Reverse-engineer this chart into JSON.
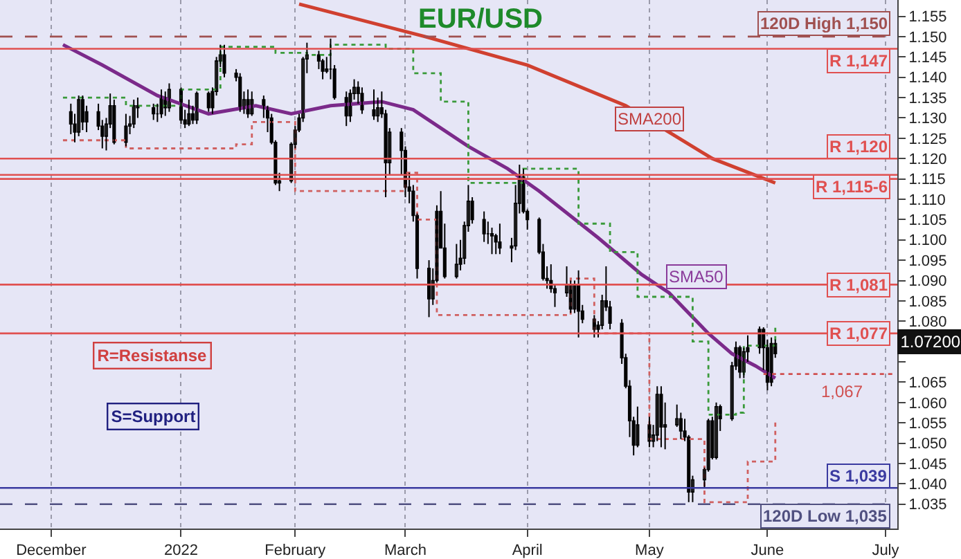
{
  "chart_data": {
    "type": "candlestick",
    "title": "EUR/USD",
    "x": [
      "2021-12-06",
      "2021-12-07",
      "2021-12-08",
      "2021-12-09",
      "2021-12-10",
      "2021-12-13",
      "2021-12-14",
      "2021-12-15",
      "2021-12-16",
      "2021-12-17",
      "2021-12-20",
      "2021-12-21",
      "2021-12-22",
      "2021-12-23",
      "2021-12-27",
      "2021-12-28",
      "2021-12-29",
      "2021-12-30",
      "2021-12-31",
      "2022-01-03",
      "2022-01-04",
      "2022-01-05",
      "2022-01-06",
      "2022-01-07",
      "2022-01-10",
      "2022-01-11",
      "2022-01-12",
      "2022-01-13",
      "2022-01-14",
      "2022-01-17",
      "2022-01-18",
      "2022-01-19",
      "2022-01-20",
      "2022-01-21",
      "2022-01-24",
      "2022-01-25",
      "2022-01-26",
      "2022-01-27",
      "2022-01-28",
      "2022-01-31",
      "2022-02-01",
      "2022-02-02",
      "2022-02-03",
      "2022-02-04",
      "2022-02-07",
      "2022-02-08",
      "2022-02-09",
      "2022-02-10",
      "2022-02-11",
      "2022-02-14",
      "2022-02-15",
      "2022-02-16",
      "2022-02-17",
      "2022-02-18",
      "2022-02-21",
      "2022-02-22",
      "2022-02-23",
      "2022-02-24",
      "2022-02-25",
      "2022-02-28",
      "2022-03-01",
      "2022-03-02",
      "2022-03-03",
      "2022-03-04",
      "2022-03-07",
      "2022-03-08",
      "2022-03-09",
      "2022-03-10",
      "2022-03-11",
      "2022-03-14",
      "2022-03-15",
      "2022-03-16",
      "2022-03-17",
      "2022-03-18",
      "2022-03-21",
      "2022-03-22",
      "2022-03-23",
      "2022-03-24",
      "2022-03-25",
      "2022-03-28",
      "2022-03-29",
      "2022-03-30",
      "2022-03-31",
      "2022-04-01",
      "2022-04-04",
      "2022-04-05",
      "2022-04-06",
      "2022-04-07",
      "2022-04-08",
      "2022-04-11",
      "2022-04-12",
      "2022-04-13",
      "2022-04-14",
      "2022-04-15",
      "2022-04-18",
      "2022-04-19",
      "2022-04-20",
      "2022-04-21",
      "2022-04-22",
      "2022-04-25",
      "2022-04-26",
      "2022-04-27",
      "2022-04-28",
      "2022-04-29",
      "2022-05-02",
      "2022-05-03",
      "2022-05-04",
      "2022-05-05",
      "2022-05-06",
      "2022-05-09",
      "2022-05-10",
      "2022-05-11",
      "2022-05-12",
      "2022-05-13",
      "2022-05-16",
      "2022-05-17",
      "2022-05-18",
      "2022-05-19",
      "2022-05-20",
      "2022-05-23",
      "2022-05-24",
      "2022-05-25",
      "2022-05-26",
      "2022-05-27",
      "2022-05-30",
      "2022-05-31",
      "2022-06-01",
      "2022-06-02",
      "2022-06-03"
    ],
    "ohlc": [
      [
        1.1315,
        1.1335,
        1.126,
        1.1285
      ],
      [
        1.1285,
        1.131,
        1.124,
        1.1265
      ],
      [
        1.1265,
        1.1355,
        1.1255,
        1.1345
      ],
      [
        1.1345,
        1.1355,
        1.127,
        1.129
      ],
      [
        1.129,
        1.133,
        1.1265,
        1.1315
      ],
      [
        1.1315,
        1.1335,
        1.127,
        1.128
      ],
      [
        1.128,
        1.1295,
        1.1225,
        1.1255
      ],
      [
        1.1255,
        1.13,
        1.122,
        1.1285
      ],
      [
        1.1285,
        1.136,
        1.1275,
        1.133
      ],
      [
        1.133,
        1.1345,
        1.1235,
        1.124
      ],
      [
        1.124,
        1.131,
        1.123,
        1.128
      ],
      [
        1.128,
        1.1305,
        1.126,
        1.1285
      ],
      [
        1.1285,
        1.1345,
        1.1275,
        1.133
      ],
      [
        1.133,
        1.135,
        1.13,
        1.1325
      ],
      [
        1.1325,
        1.1335,
        1.1295,
        1.131
      ],
      [
        1.131,
        1.1335,
        1.129,
        1.131
      ],
      [
        1.131,
        1.137,
        1.13,
        1.135
      ],
      [
        1.135,
        1.1365,
        1.1305,
        1.1325
      ],
      [
        1.1325,
        1.1385,
        1.1315,
        1.137
      ],
      [
        1.137,
        1.1375,
        1.1285,
        1.1295
      ],
      [
        1.1295,
        1.132,
        1.1275,
        1.1285
      ],
      [
        1.1285,
        1.1345,
        1.128,
        1.131
      ],
      [
        1.131,
        1.133,
        1.1285,
        1.1295
      ],
      [
        1.1295,
        1.1365,
        1.1285,
        1.136
      ],
      [
        1.136,
        1.1365,
        1.1315,
        1.1325
      ],
      [
        1.1325,
        1.1375,
        1.131,
        1.1365
      ],
      [
        1.1365,
        1.145,
        1.1355,
        1.144
      ],
      [
        1.144,
        1.148,
        1.1425,
        1.1455
      ],
      [
        1.1455,
        1.148,
        1.14,
        1.141
      ],
      [
        1.141,
        1.142,
        1.139,
        1.14
      ],
      [
        1.14,
        1.141,
        1.1315,
        1.1325
      ],
      [
        1.1325,
        1.1365,
        1.131,
        1.1345
      ],
      [
        1.1345,
        1.137,
        1.13,
        1.131
      ],
      [
        1.131,
        1.1365,
        1.1305,
        1.1345
      ],
      [
        1.1345,
        1.1355,
        1.13,
        1.1325
      ],
      [
        1.1325,
        1.133,
        1.1265,
        1.13
      ],
      [
        1.13,
        1.131,
        1.1235,
        1.124
      ],
      [
        1.124,
        1.1245,
        1.1135,
        1.114
      ],
      [
        1.114,
        1.1165,
        1.112,
        1.1145
      ],
      [
        1.1145,
        1.124,
        1.114,
        1.1235
      ],
      [
        1.1235,
        1.128,
        1.1225,
        1.127
      ],
      [
        1.127,
        1.131,
        1.1265,
        1.13
      ],
      [
        1.13,
        1.145,
        1.129,
        1.1445
      ],
      [
        1.1445,
        1.1485,
        1.141,
        1.1455
      ],
      [
        1.1455,
        1.1465,
        1.142,
        1.144
      ],
      [
        1.144,
        1.1445,
        1.1395,
        1.1415
      ],
      [
        1.1415,
        1.145,
        1.141,
        1.142
      ],
      [
        1.142,
        1.1495,
        1.1395,
        1.142
      ],
      [
        1.142,
        1.143,
        1.1345,
        1.135
      ],
      [
        1.135,
        1.1365,
        1.128,
        1.1305
      ],
      [
        1.1305,
        1.137,
        1.129,
        1.136
      ],
      [
        1.136,
        1.1395,
        1.1345,
        1.1375
      ],
      [
        1.1375,
        1.139,
        1.1335,
        1.136
      ],
      [
        1.136,
        1.1375,
        1.131,
        1.132
      ],
      [
        1.132,
        1.137,
        1.1295,
        1.1305
      ],
      [
        1.1305,
        1.135,
        1.129,
        1.1325
      ],
      [
        1.1325,
        1.1365,
        1.13,
        1.131
      ],
      [
        1.131,
        1.132,
        1.1105,
        1.119
      ],
      [
        1.119,
        1.1275,
        1.116,
        1.1265
      ],
      [
        1.1265,
        1.1275,
        1.116,
        1.122
      ],
      [
        1.122,
        1.123,
        1.1105,
        1.113
      ],
      [
        1.113,
        1.1165,
        1.109,
        1.112
      ],
      [
        1.112,
        1.1135,
        1.1045,
        1.106
      ],
      [
        1.106,
        1.1065,
        1.0905,
        1.093
      ],
      [
        1.093,
        1.095,
        1.081,
        1.0855
      ],
      [
        1.0855,
        1.093,
        1.084,
        1.09
      ],
      [
        1.09,
        1.1085,
        1.0895,
        1.107
      ],
      [
        1.107,
        1.112,
        1.098,
        1.098
      ],
      [
        1.098,
        1.104,
        1.0905,
        1.091
      ],
      [
        1.091,
        1.099,
        1.0905,
        1.094
      ],
      [
        1.094,
        1.1,
        1.0925,
        1.0955
      ],
      [
        1.0955,
        1.1045,
        1.094,
        1.1035
      ],
      [
        1.1035,
        1.1135,
        1.102,
        1.1095
      ],
      [
        1.1095,
        1.1105,
        1.104,
        1.105
      ],
      [
        1.105,
        1.107,
        1.0995,
        1.1015
      ],
      [
        1.1015,
        1.1045,
        1.099,
        1.1015
      ],
      [
        1.1015,
        1.103,
        1.0965,
        1.101
      ],
      [
        1.101,
        1.1015,
        1.0965,
        1.0995
      ],
      [
        1.0995,
        1.104,
        1.0965,
        1.098
      ],
      [
        1.098,
        1.1005,
        1.0945,
        1.0985
      ],
      [
        1.0985,
        1.1135,
        1.0975,
        1.109
      ],
      [
        1.109,
        1.1185,
        1.1065,
        1.1155
      ],
      [
        1.1155,
        1.1175,
        1.1065,
        1.107
      ],
      [
        1.107,
        1.1075,
        1.1025,
        1.105
      ],
      [
        1.105,
        1.1055,
        1.0965,
        1.097
      ],
      [
        1.097,
        1.099,
        1.09,
        1.0905
      ],
      [
        1.0905,
        1.0935,
        1.088,
        1.09
      ],
      [
        1.09,
        1.094,
        1.087,
        1.088
      ],
      [
        1.088,
        1.089,
        1.0835,
        1.087
      ],
      [
        1.087,
        1.0935,
        1.086,
        1.089
      ],
      [
        1.089,
        1.09,
        1.082,
        1.083
      ],
      [
        1.083,
        1.09,
        1.082,
        1.089
      ],
      [
        1.089,
        1.0925,
        1.076,
        1.0825
      ],
      [
        1.0825,
        1.084,
        1.0795,
        1.0805
      ],
      [
        1.0805,
        1.0815,
        1.076,
        1.078
      ],
      [
        1.078,
        1.08,
        1.076,
        1.079
      ],
      [
        1.079,
        1.0865,
        1.078,
        1.085
      ],
      [
        1.085,
        1.0935,
        1.0825,
        1.0835
      ],
      [
        1.0835,
        1.085,
        1.078,
        1.0795
      ],
      [
        1.0795,
        1.0805,
        1.0695,
        1.071
      ],
      [
        1.071,
        1.072,
        1.0635,
        1.064
      ],
      [
        1.064,
        1.0655,
        1.0515,
        1.0555
      ],
      [
        1.0555,
        1.0565,
        1.047,
        1.0495
      ],
      [
        1.0495,
        1.059,
        1.049,
        1.0545
      ],
      [
        1.0545,
        1.0565,
        1.049,
        1.0505
      ],
      [
        1.0505,
        1.0545,
        1.049,
        1.052
      ],
      [
        1.052,
        1.064,
        1.0505,
        1.062
      ],
      [
        1.062,
        1.064,
        1.049,
        1.054
      ],
      [
        1.054,
        1.06,
        1.0485,
        1.0545
      ],
      [
        1.0545,
        1.0595,
        1.054,
        1.056
      ],
      [
        1.056,
        1.0575,
        1.051,
        1.053
      ],
      [
        1.053,
        1.056,
        1.0505,
        1.0515
      ],
      [
        1.0515,
        1.052,
        1.0355,
        1.038
      ],
      [
        1.038,
        1.042,
        1.0355,
        1.041
      ],
      [
        1.041,
        1.044,
        1.039,
        1.0435
      ],
      [
        1.0435,
        1.056,
        1.043,
        1.0555
      ],
      [
        1.0555,
        1.0565,
        1.046,
        1.0465
      ],
      [
        1.0465,
        1.06,
        1.046,
        1.059
      ],
      [
        1.059,
        1.0595,
        1.053,
        1.056
      ],
      [
        1.056,
        1.07,
        1.0555,
        1.069
      ],
      [
        1.069,
        1.075,
        1.068,
        1.0735
      ],
      [
        1.0735,
        1.074,
        1.066,
        1.0675
      ],
      [
        1.0675,
        1.0735,
        1.066,
        1.0725
      ],
      [
        1.0725,
        1.0765,
        1.07,
        1.0735
      ],
      [
        1.0735,
        1.0787,
        1.072,
        1.078
      ],
      [
        1.078,
        1.0785,
        1.068,
        1.0735
      ],
      [
        1.0735,
        1.0755,
        1.063,
        1.065
      ],
      [
        1.065,
        1.076,
        1.064,
        1.0745
      ],
      [
        1.0745,
        1.0755,
        1.071,
        1.072
      ]
    ],
    "series": [
      {
        "type": "line",
        "color": "#d04030",
        "x": [
          "2022-02-02",
          "2022-03-06",
          "2022-04-01",
          "2022-04-26",
          "2022-05-18",
          "2022-06-03"
        ],
        "values": [
          1.158,
          1.15,
          1.143,
          1.133,
          1.12,
          1.114
        ]
      },
      {
        "type": "line",
        "color": "#7b2a8a",
        "x": [
          "2021-12-04",
          "2021-12-14",
          "2021-12-28",
          "2022-01-10",
          "2022-01-22",
          "2022-01-31",
          "2022-02-10",
          "2022-02-23",
          "2022-03-03",
          "2022-03-17",
          "2022-03-27",
          "2022-04-04",
          "2022-04-19",
          "2022-04-30",
          "2022-05-07",
          "2022-05-17",
          "2022-05-23",
          "2022-05-29",
          "2022-06-03"
        ],
        "values": [
          1.148,
          1.143,
          1.1355,
          1.131,
          1.133,
          1.131,
          1.133,
          1.134,
          1.132,
          1.123,
          1.1175,
          1.112,
          1.1005,
          1.0915,
          1.087,
          1.077,
          1.072,
          1.069,
          1.066
        ]
      },
      {
        "type": "step",
        "color": "#3a9a3a",
        "line_style": "dotted",
        "x": [
          "2021-12-04",
          "2021-12-20",
          "2022-01-03",
          "2022-01-13",
          "2022-01-27",
          "2022-02-04",
          "2022-02-10",
          "2022-02-24",
          "2022-03-03",
          "2022-03-10",
          "2022-03-17",
          "2022-03-31",
          "2022-04-08",
          "2022-04-14",
          "2022-04-22",
          "2022-04-29",
          "2022-05-06",
          "2022-05-13",
          "2022-05-17",
          "2022-05-24",
          "2022-05-26",
          "2022-06-03"
        ],
        "values": [
          1.135,
          1.133,
          1.137,
          1.1475,
          1.146,
          1.1455,
          1.148,
          1.147,
          1.141,
          1.134,
          1.114,
          1.1175,
          1.1175,
          1.104,
          1.097,
          1.086,
          1.086,
          1.075,
          1.057,
          1.0575,
          1.074,
          1.079
        ]
      },
      {
        "type": "line",
        "name": "1,067",
        "color": "#d05050",
        "line_style": "dotted",
        "x": [
          "2022-05-31",
          "2022-07-03"
        ],
        "values": [
          1.067,
          1.067
        ]
      },
      {
        "type": "step",
        "color": "#d06060",
        "line_style": "dotted",
        "x": [
          "2021-12-04",
          "2021-12-20",
          "2022-01-10",
          "2022-01-17",
          "2022-01-21",
          "2022-01-27",
          "2022-02-01",
          "2022-02-24",
          "2022-03-01",
          "2022-03-04",
          "2022-03-09",
          "2022-04-04",
          "2022-04-12",
          "2022-04-18",
          "2022-04-29",
          "2022-05-02",
          "2022-05-12",
          "2022-05-16",
          "2022-05-25",
          "2022-05-27",
          "2022-06-03"
        ],
        "values": [
          1.1245,
          1.1225,
          1.1225,
          1.1235,
          1.129,
          1.129,
          1.112,
          1.112,
          1.1165,
          1.105,
          1.0815,
          1.0815,
          1.0905,
          1.077,
          1.077,
          1.051,
          1.051,
          1.0355,
          1.0355,
          1.0455,
          1.0555
        ]
      }
    ],
    "ref_lines": [
      {
        "axis": "y",
        "value": 1.15,
        "label": "120D High 1,150",
        "color": "#a05050",
        "line_style": "dashed"
      },
      {
        "axis": "y",
        "value": 1.147,
        "label": "R 1,147",
        "color": "#e05050",
        "line_style": "solid"
      },
      {
        "axis": "y",
        "value": 1.12,
        "label": "R 1,120",
        "color": "#e05050",
        "line_style": "solid"
      },
      {
        "axis": "y",
        "value": 1.116,
        "label": "R 1,115-6",
        "color": "#e05050",
        "line_style": "solid"
      },
      {
        "axis": "y",
        "value": 1.115,
        "color": "#e05050",
        "line_style": "solid"
      },
      {
        "axis": "y",
        "value": 1.089,
        "label": "R 1,081",
        "color": "#e05050",
        "line_style": "solid"
      },
      {
        "axis": "y",
        "value": 1.077,
        "label": "R 1,077",
        "color": "#e05050",
        "line_style": "solid"
      },
      {
        "axis": "y",
        "value": 1.039,
        "label": "S 1,039",
        "color": "#3a3aa0",
        "line_style": "solid"
      },
      {
        "axis": "y",
        "value": 1.035,
        "label": "120D Low 1,035",
        "color": "#505080",
        "line_style": "dashed"
      }
    ],
    "annotations": [
      "R=Resistanse",
      "S=Support",
      {
        "text": "SMA200",
        "x": "2022-05-02",
        "y": 1.1297
      },
      {
        "text": "SMA50",
        "x": "2022-05-14",
        "y": 1.091
      },
      "1.07200"
    ],
    "xlim": [
      "2021-11-18",
      "2022-07-04"
    ],
    "xticks": [
      {
        "value": "2021-12-01",
        "label": "December"
      },
      {
        "value": "2022-01-03",
        "label": "2022"
      },
      {
        "value": "2022-02-01",
        "label": "February"
      },
      {
        "value": "2022-03-01",
        "label": "March"
      },
      {
        "value": "2022-04-01",
        "label": "April"
      },
      {
        "value": "2022-05-02",
        "label": "May"
      },
      {
        "value": "2022-06-01",
        "label": "June"
      },
      {
        "value": "2022-07-01",
        "label": "July"
      }
    ],
    "ylim": [
      1.029,
      1.159
    ],
    "yticks": [
      {
        "value": 1.035,
        "label": "1.035"
      },
      {
        "value": 1.04,
        "label": "1.040"
      },
      {
        "value": 1.045,
        "label": "1.045"
      },
      {
        "value": 1.05,
        "label": "1.050"
      },
      {
        "value": 1.055,
        "label": "1.055"
      },
      {
        "value": 1.06,
        "label": "1.060"
      },
      {
        "value": 1.065,
        "label": "1.065"
      },
      {
        "value": 1.07,
        "label": null
      },
      {
        "value": 1.075,
        "label": null
      },
      {
        "value": 1.08,
        "label": "1.080"
      },
      {
        "value": 1.085,
        "label": "1.085"
      },
      {
        "value": 1.09,
        "label": "1.090"
      },
      {
        "value": 1.095,
        "label": "1.095"
      },
      {
        "value": 1.1,
        "label": "1.100"
      },
      {
        "value": 1.105,
        "label": "1.105"
      },
      {
        "value": 1.11,
        "label": "1.110"
      },
      {
        "value": 1.115,
        "label": "1.115"
      },
      {
        "value": 1.12,
        "label": "1.120"
      },
      {
        "value": 1.125,
        "label": "1.125"
      },
      {
        "value": 1.13,
        "label": "1.130"
      },
      {
        "value": 1.135,
        "label": "1.135"
      },
      {
        "value": 1.14,
        "label": "1.140"
      },
      {
        "value": 1.145,
        "label": "1.145"
      },
      {
        "value": 1.15,
        "label": "1.150"
      },
      {
        "value": 1.155,
        "label": "1.155"
      }
    ],
    "grid": "x",
    "legend": false
  }
}
